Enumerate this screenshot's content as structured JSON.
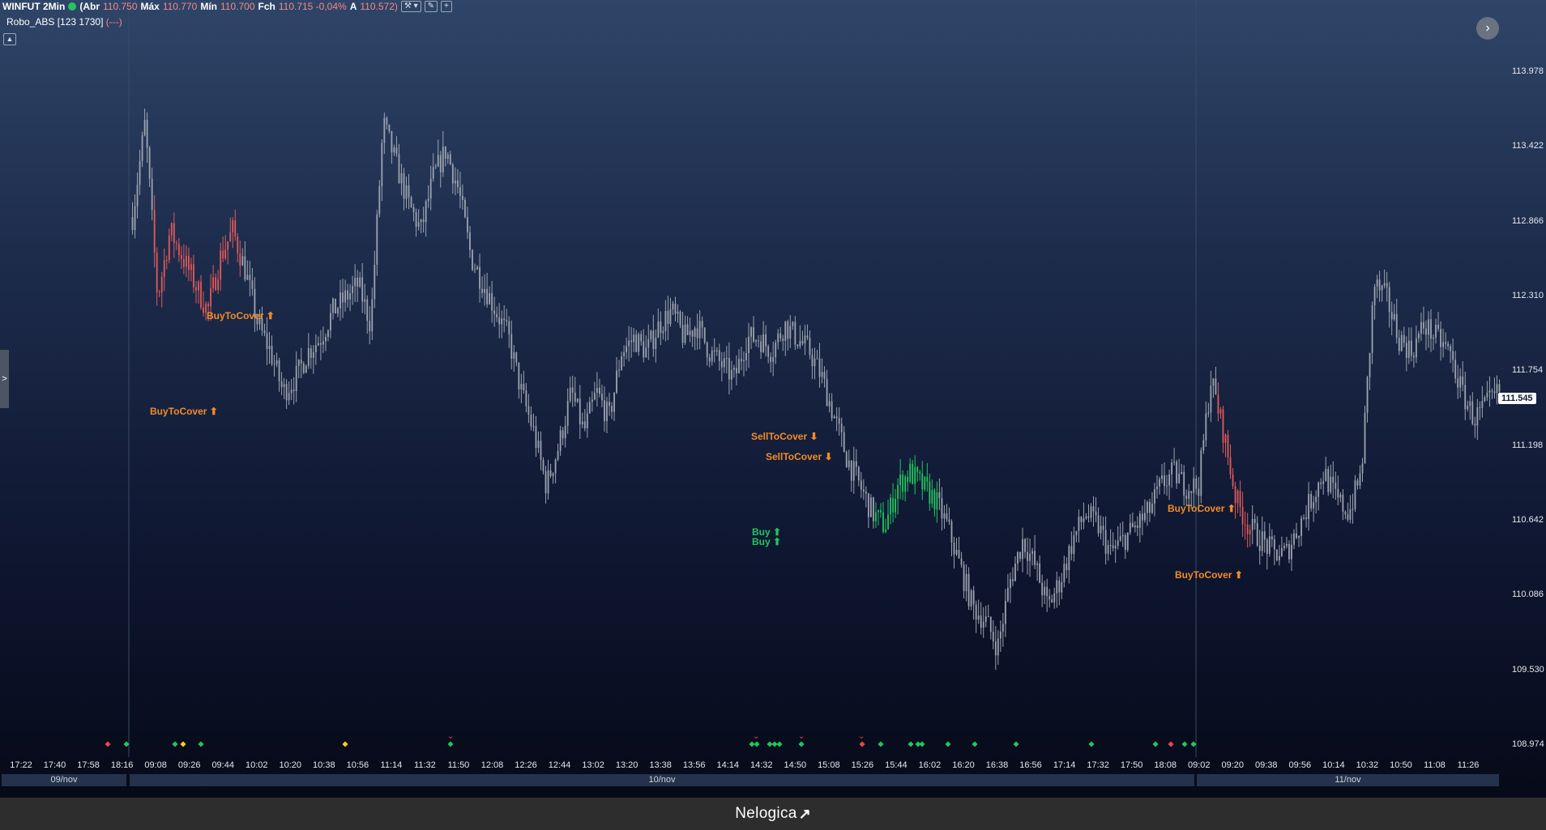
{
  "header": {
    "symbol": "WINFUT 2Min",
    "open_label": "(Abr",
    "open": "110.750",
    "high_label": "Máx",
    "high": "110.770",
    "low_label": "Mín",
    "low": "110.700",
    "close_label": "Fch",
    "close": "110.715 -0,04%",
    "a_label": "A",
    "a": "110.572)"
  },
  "robot": {
    "name": "Robo_ABS [123 1730]",
    "params": "(---)"
  },
  "footer": {
    "brand": "Nelogica"
  },
  "last_price": "111.545",
  "colors": {
    "up": "#9ca3af",
    "sell": "#e05a5a",
    "buy": "#22c55e",
    "cover": "#f28c28"
  },
  "chart_data": {
    "type": "candlestick",
    "yaxis_ticks": [
      "113.978",
      "113.422",
      "112.866",
      "112.310",
      "111.754",
      "111.198",
      "110.642",
      "110.086",
      "109.530",
      "108.974"
    ],
    "ylim": [
      108.974,
      113.978
    ],
    "xaxis_ticks": [
      "17:22",
      "17:40",
      "17:58",
      "18:16",
      "09:08",
      "09:26",
      "09:44",
      "10:02",
      "10:20",
      "10:38",
      "10:56",
      "11:14",
      "11:32",
      "11:50",
      "12:08",
      "12:26",
      "12:44",
      "13:02",
      "13:20",
      "13:38",
      "13:56",
      "14:14",
      "14:32",
      "14:50",
      "15:08",
      "15:26",
      "15:44",
      "16:02",
      "16:20",
      "16:38",
      "16:56",
      "17:14",
      "17:32",
      "17:50",
      "18:08",
      "09:02",
      "09:20",
      "09:38",
      "09:56",
      "10:14",
      "10:32",
      "10:50",
      "11:08",
      "11:26"
    ],
    "dates": [
      "09/nov",
      "10/nov",
      "11/nov"
    ],
    "signals": [
      {
        "label": "BuyToCover",
        "time": "09:35"
      },
      {
        "label": "BuyToCover",
        "time": "09:28"
      },
      {
        "label": "SellToCover",
        "time": "14:20"
      },
      {
        "label": "SellToCover",
        "time": "14:35"
      },
      {
        "label": "Buy",
        "time": "14:18"
      },
      {
        "label": "Buy",
        "time": "14:18"
      },
      {
        "label": "BuyToCover",
        "time": "09:18"
      },
      {
        "label": "BuyToCover",
        "time": "09:20"
      }
    ],
    "close_path": [
      112.9,
      113.6,
      112.3,
      112.8,
      112.6,
      112.4,
      112.2,
      112.6,
      112.8,
      112.5,
      112.1,
      111.9,
      111.6,
      111.7,
      111.9,
      112.0,
      112.2,
      112.3,
      112.4,
      112.1,
      113.6,
      113.3,
      113.0,
      112.8,
      113.2,
      113.4,
      113.1,
      112.6,
      112.4,
      112.2,
      112.0,
      111.6,
      111.3,
      110.9,
      111.2,
      111.6,
      111.3,
      111.6,
      111.4,
      111.9,
      112.0,
      111.9,
      112.1,
      112.2,
      112.0,
      112.1,
      111.9,
      111.8,
      111.7,
      112.0,
      112.0,
      111.9,
      112.1,
      112.0,
      111.9,
      111.7,
      111.4,
      111.1,
      110.9,
      110.7,
      110.6,
      110.9,
      111.0,
      110.9,
      110.8,
      110.6,
      110.3,
      110.0,
      109.9,
      109.7,
      110.2,
      110.5,
      110.3,
      110.0,
      110.2,
      110.5,
      110.7,
      110.6,
      110.4,
      110.5,
      110.6,
      110.7,
      110.9,
      111.0,
      110.9,
      110.9,
      111.7,
      111.3,
      110.8,
      110.6,
      110.5,
      110.4,
      110.4,
      110.6,
      110.8,
      111.0,
      110.8,
      110.7,
      111.0,
      112.4,
      112.3,
      112.0,
      111.9,
      112.1,
      112.0,
      111.9,
      111.6,
      111.4,
      111.5,
      111.6
    ],
    "volatility": 0.12
  }
}
